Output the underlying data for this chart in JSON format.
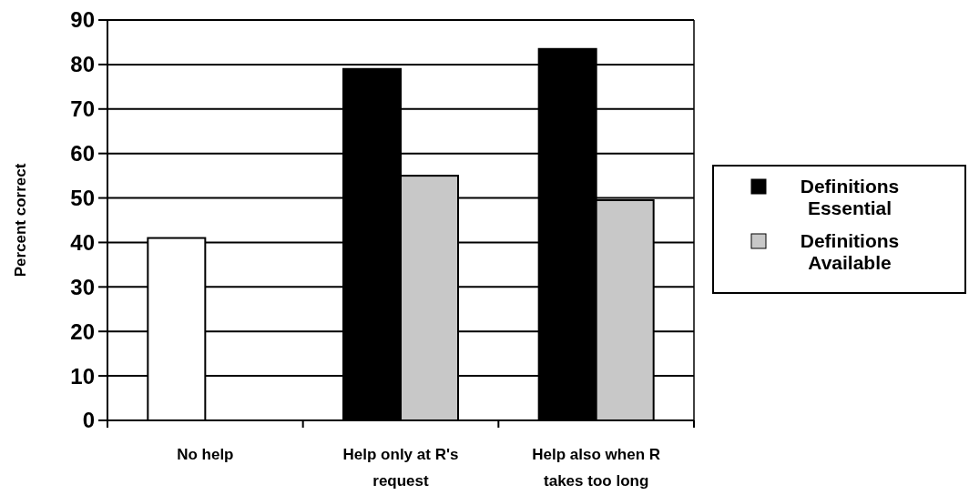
{
  "chart_data": {
    "type": "bar",
    "ylabel": "Percent correct",
    "categories": [
      "No help",
      "Help only at R's request",
      "Help also when R takes too long"
    ],
    "series": [
      {
        "name": "Definitions Essential",
        "color": "#000000",
        "colors": [
          "#ffffff",
          "#000000",
          "#000000"
        ],
        "values": [
          41,
          79,
          83.5
        ]
      },
      {
        "name": "Definitions Available",
        "color": "#c8c8c8",
        "values": [
          null,
          55,
          49.5
        ]
      }
    ],
    "ylim": [
      0,
      90
    ],
    "yticks": [
      0,
      10,
      20,
      30,
      40,
      50,
      60,
      70,
      80,
      90
    ],
    "grid": "y",
    "legend": "right"
  }
}
